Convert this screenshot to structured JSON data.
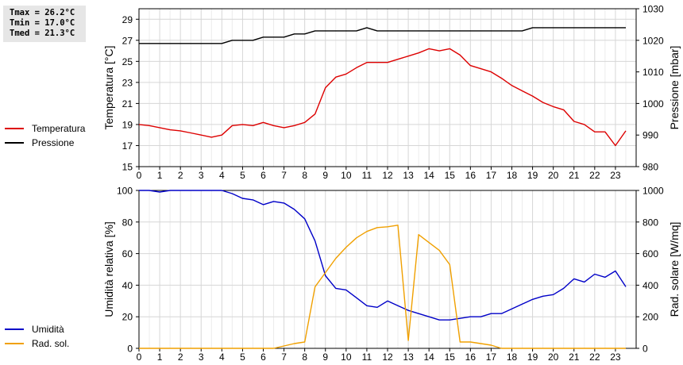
{
  "stats": {
    "tmax": "Tmax = 26.2°C",
    "tmin": "Tmin = 17.0°C",
    "tmed": "Tmed = 21.3°C"
  },
  "legend_top": [
    {
      "label": "Temperatura",
      "color": "#dd0000"
    },
    {
      "label": "Pressione",
      "color": "#000000"
    }
  ],
  "legend_bottom": [
    {
      "label": "Umidità",
      "color": "#0000c8"
    },
    {
      "label": "Rad. sol.",
      "color": "#f0a000"
    }
  ],
  "chart_data": [
    {
      "type": "line",
      "xlabel": "",
      "xlim": [
        0,
        24
      ],
      "xticks": [
        "0",
        "1",
        "2",
        "3",
        "4",
        "5",
        "6",
        "7",
        "8",
        "9",
        "10",
        "11",
        "12",
        "13",
        "14",
        "15",
        "16",
        "17",
        "18",
        "19",
        "20",
        "21",
        "22",
        "23"
      ],
      "ylabel": "Temperatura [°C]",
      "ylim": [
        15,
        30
      ],
      "yticks": [
        "15",
        "17",
        "19",
        "21",
        "23",
        "25",
        "27",
        "29"
      ],
      "y2label": "Pressione [mbar]",
      "y2lim": [
        980,
        1030
      ],
      "y2ticks": [
        "980",
        "990",
        "1000",
        "1010",
        "1020",
        "1030"
      ],
      "grid": true,
      "series": [
        {
          "name": "Temperatura",
          "axis": "left",
          "color": "#dd0000",
          "x": [
            0,
            0.5,
            1,
            1.5,
            2,
            2.5,
            3,
            3.5,
            4,
            4.5,
            5,
            5.5,
            6,
            6.5,
            7,
            7.5,
            8,
            8.5,
            9,
            9.5,
            10,
            10.5,
            11,
            11.5,
            12,
            12.5,
            13,
            13.5,
            14,
            14.5,
            15,
            15.5,
            16,
            16.5,
            17,
            17.5,
            18,
            18.5,
            19,
            19.5,
            20,
            20.5,
            21,
            21.5,
            22,
            22.5,
            23,
            23.5
          ],
          "y": [
            19.0,
            18.9,
            18.7,
            18.5,
            18.4,
            18.2,
            18.0,
            17.8,
            18.0,
            18.9,
            19.0,
            18.9,
            19.2,
            18.9,
            18.7,
            18.9,
            19.2,
            20.0,
            22.5,
            23.5,
            23.8,
            24.4,
            24.9,
            24.9,
            24.9,
            25.2,
            25.5,
            25.8,
            26.2,
            26.0,
            26.2,
            25.6,
            24.6,
            24.3,
            24.0,
            23.4,
            22.7,
            22.2,
            21.7,
            21.1,
            20.7,
            20.4,
            19.3,
            19.0,
            18.3,
            18.3,
            17.0,
            18.4
          ]
        },
        {
          "name": "Pressione",
          "axis": "right",
          "color": "#000000",
          "x": [
            0,
            4,
            4.5,
            5.5,
            6,
            7,
            7.5,
            8,
            8.5,
            10.5,
            11,
            11.5,
            18.5,
            19,
            23.5
          ],
          "y": [
            1019,
            1019,
            1020,
            1020,
            1021,
            1021,
            1022,
            1022,
            1023,
            1023,
            1024,
            1023,
            1023,
            1024,
            1024
          ]
        }
      ]
    },
    {
      "type": "line",
      "xlabel": "",
      "xlim": [
        0,
        24
      ],
      "xticks": [
        "0",
        "1",
        "2",
        "3",
        "4",
        "5",
        "6",
        "7",
        "8",
        "9",
        "10",
        "11",
        "12",
        "13",
        "14",
        "15",
        "16",
        "17",
        "18",
        "19",
        "20",
        "21",
        "22",
        "23"
      ],
      "ylabel": "Umidità relativa [%]",
      "ylim": [
        0,
        100
      ],
      "yticks": [
        "0",
        "20",
        "40",
        "60",
        "80",
        "100"
      ],
      "y2label": "Rad. solare [W/mq]",
      "y2lim": [
        0,
        1000
      ],
      "y2ticks": [
        "0",
        "200",
        "400",
        "600",
        "800",
        "1000"
      ],
      "grid": true,
      "series": [
        {
          "name": "Umidità",
          "axis": "left",
          "color": "#0000c8",
          "x": [
            0,
            0.5,
            1,
            1.5,
            2,
            2.5,
            3,
            3.5,
            4,
            4.5,
            5,
            5.5,
            6,
            6.5,
            7,
            7.5,
            8,
            8.5,
            9,
            9.5,
            10,
            10.5,
            11,
            11.5,
            12,
            12.5,
            13,
            13.5,
            14,
            14.5,
            15,
            15.5,
            16,
            16.5,
            17,
            17.5,
            18,
            18.5,
            19,
            19.5,
            20,
            20.5,
            21,
            21.5,
            22,
            22.5,
            23,
            23.5
          ],
          "y": [
            100,
            100,
            99,
            100,
            100,
            100,
            100,
            100,
            100,
            98,
            95,
            94,
            91,
            93,
            92,
            88,
            82,
            68,
            46,
            38,
            37,
            32,
            27,
            26,
            30,
            27,
            24,
            22,
            20,
            18,
            18,
            19,
            20,
            20,
            22,
            22,
            25,
            28,
            31,
            33,
            34,
            38,
            44,
            42,
            47,
            45,
            49,
            39
          ]
        },
        {
          "name": "Rad. sol.",
          "axis": "right",
          "color": "#f0a000",
          "x": [
            0,
            6.5,
            7,
            7.5,
            8,
            8.5,
            9,
            9.5,
            10,
            10.5,
            11,
            11.5,
            12,
            12.5,
            13,
            13.5,
            14,
            14.5,
            15,
            15.5,
            16,
            16.5,
            17,
            17.5,
            18,
            23.5
          ],
          "y": [
            0,
            0,
            15,
            30,
            40,
            390,
            480,
            570,
            640,
            700,
            740,
            765,
            770,
            780,
            50,
            720,
            670,
            620,
            530,
            40,
            40,
            30,
            20,
            0,
            0,
            0
          ]
        }
      ]
    }
  ]
}
